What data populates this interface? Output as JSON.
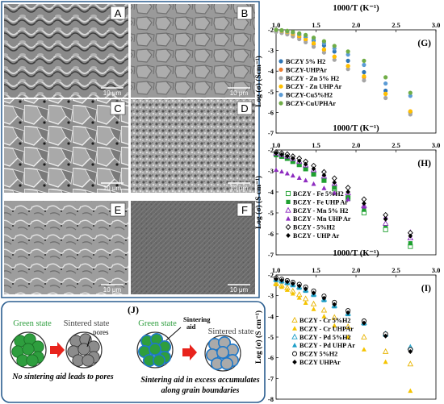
{
  "sem_panels": [
    {
      "label": "A",
      "scale": "10 μm",
      "style": "a"
    },
    {
      "label": "B",
      "scale": "10 μm",
      "style": "b"
    },
    {
      "label": "C",
      "scale": "10 μm",
      "style": "c"
    },
    {
      "label": "D",
      "scale": "10 μm",
      "style": "d"
    },
    {
      "label": "E",
      "scale": "10 μm",
      "style": "e"
    },
    {
      "label": "F",
      "scale": "10 μm",
      "style": "f"
    }
  ],
  "schematic": {
    "label": "(J)",
    "left": {
      "green": "Green state",
      "sintered": "Sintered state",
      "pores": "pores",
      "caption": "No sintering aid leads to pores"
    },
    "right": {
      "green": "Green state",
      "sintered": "Sintered state",
      "aid_line1": "Sintering",
      "aid_line2": "aid",
      "caption_line1": "Sintering aid in excess accumulates",
      "caption_line2": "along grain boundaries"
    },
    "colors": {
      "green": "#2e9e3e",
      "grey": "#8c8c8c",
      "aid": "#1f78c8",
      "arrow": "#e8231c",
      "frame": "#2a5d8f"
    }
  },
  "chart_data": [
    {
      "type": "scatter",
      "panel": "(G)",
      "xlabel": "1000/T (K⁻¹)",
      "ylabel": "Log (σ) (Scm⁻¹)",
      "xlim": [
        1.0,
        3.0
      ],
      "ylim": [
        -7,
        -2
      ],
      "xticks": [
        "1.0",
        "1.5",
        "2.0",
        "2.5",
        "3.0"
      ],
      "yticks": [
        "-2",
        "-3",
        "-4",
        "-5",
        "-6",
        "-7"
      ],
      "x": [
        1.0,
        1.07,
        1.14,
        1.21,
        1.29,
        1.37,
        1.47,
        1.6,
        1.73,
        1.9,
        2.1,
        2.37,
        2.68
      ],
      "series": [
        {
          "name": "BCZY 5% H2",
          "marker": "circle",
          "color": "#2e75b6",
          "values": [
            -2.02,
            -2.05,
            -2.1,
            -2.16,
            -2.25,
            -2.36,
            -2.52,
            -2.76,
            -3.05,
            -3.5,
            -4.05,
            -4.95,
            -6.0
          ]
        },
        {
          "name": "BCZY-UHPAr",
          "marker": "circle",
          "color": "#ed7d31",
          "values": [
            -2.05,
            -2.1,
            -2.16,
            -2.25,
            -2.36,
            -2.5,
            -2.7,
            -2.97,
            -3.3,
            -3.75,
            -4.3,
            -5.1,
            -5.95
          ]
        },
        {
          "name": "BCZY - Zn 5% H2",
          "marker": "circle",
          "color": "#a5a5a5",
          "values": [
            -2.1,
            -2.15,
            -2.22,
            -2.32,
            -2.45,
            -2.6,
            -2.82,
            -3.1,
            -3.45,
            -3.9,
            -4.45,
            -5.3,
            -6.1
          ]
        },
        {
          "name": "BCZY - Zn UHP Ar",
          "marker": "circle",
          "color": "#ffc000",
          "values": [
            -2.0,
            -2.05,
            -2.1,
            -2.18,
            -2.3,
            -2.45,
            -2.65,
            -2.95,
            -3.3,
            -3.75,
            -4.25,
            -5.1,
            -5.95
          ]
        },
        {
          "name": "BCZY-Cu5%H2",
          "marker": "circle",
          "color": "#5b9bd5",
          "values": [
            -2.0,
            -2.03,
            -2.07,
            -2.12,
            -2.2,
            -2.3,
            -2.45,
            -2.65,
            -2.9,
            -3.2,
            -3.7,
            -4.6,
            -5.2
          ]
        },
        {
          "name": "BCZY-CuUPHAr",
          "marker": "circle",
          "color": "#70ad47",
          "values": [
            -2.0,
            -2.02,
            -2.05,
            -2.1,
            -2.17,
            -2.25,
            -2.38,
            -2.55,
            -2.78,
            -3.05,
            -3.5,
            -4.3,
            -5.05
          ]
        }
      ]
    },
    {
      "type": "scatter",
      "panel": "(H)",
      "xlabel": "1000/T (K⁻¹)",
      "ylabel": "Log (σ) (S cm⁻¹)",
      "xlim": [
        1.0,
        3.0
      ],
      "ylim": [
        -7,
        -2
      ],
      "xticks": [
        "1.0",
        "1.5",
        "2.0",
        "2.5",
        "3.0"
      ],
      "yticks": [
        "-2",
        "-3",
        "-4",
        "-5",
        "-6",
        "-7"
      ],
      "x": [
        1.0,
        1.07,
        1.14,
        1.21,
        1.29,
        1.37,
        1.47,
        1.6,
        1.73,
        1.9,
        2.1,
        2.37,
        2.68
      ],
      "series": [
        {
          "name": "BCZY - Fe 5%H2",
          "marker": "square-open",
          "color": "#1fa030",
          "values": [
            -2.2,
            -2.3,
            -2.4,
            -2.55,
            -2.7,
            -2.9,
            -3.15,
            -3.45,
            -3.85,
            -4.3,
            -5.0,
            -5.8,
            -6.6
          ]
        },
        {
          "name": "BCZY - Fe UHP Ar",
          "marker": "square",
          "color": "#1fa030",
          "values": [
            -2.25,
            -2.32,
            -2.42,
            -2.55,
            -2.7,
            -2.9,
            -3.15,
            -3.45,
            -3.8,
            -4.25,
            -4.85,
            -5.6,
            -6.45
          ]
        },
        {
          "name": "BCZY - Mn 5% H2",
          "marker": "triangle-open",
          "color": "#8e2cc0",
          "values": [
            -2.15,
            -2.22,
            -2.3,
            -2.42,
            -2.55,
            -2.72,
            -2.95,
            -3.25,
            -3.6,
            -4.05,
            -4.65,
            -5.5,
            -6.2
          ]
        },
        {
          "name": "BCZY - Mn UHP Ar",
          "marker": "triangle",
          "color": "#8e2cc0",
          "values": [
            -2.95,
            -3.03,
            -3.12,
            -3.22,
            -3.33,
            -3.45,
            -3.62,
            -3.82,
            -4.05,
            -4.35,
            -4.7,
            -5.2,
            -5.9
          ]
        },
        {
          "name": "BCZY - 5%H2",
          "marker": "diamond-open",
          "color": "#000000",
          "values": [
            -2.1,
            -2.15,
            -2.2,
            -2.3,
            -2.4,
            -2.55,
            -2.75,
            -3.05,
            -3.35,
            -3.8,
            -4.35,
            -5.1,
            -5.95
          ]
        },
        {
          "name": "BCZY - UHP Ar",
          "marker": "diamond",
          "color": "#000000",
          "values": [
            -2.15,
            -2.22,
            -2.3,
            -2.4,
            -2.52,
            -2.68,
            -2.9,
            -3.2,
            -3.55,
            -4.0,
            -4.55,
            -5.3,
            -6.1
          ]
        }
      ]
    },
    {
      "type": "scatter",
      "panel": "(I)",
      "xlabel": "1000/T (K⁻¹)",
      "ylabel": "Log (σ) (S cm⁻¹)",
      "xlim": [
        1.0,
        3.0
      ],
      "ylim": [
        -8,
        -2
      ],
      "xticks": [
        "1.0",
        "1.5",
        "2.0",
        "2.5",
        "3.0"
      ],
      "yticks": [
        "-2",
        "-3",
        "-4",
        "-5",
        "-6",
        "-7",
        "-8"
      ],
      "x": [
        1.0,
        1.07,
        1.14,
        1.21,
        1.29,
        1.37,
        1.47,
        1.6,
        1.73,
        1.9,
        2.1,
        2.37,
        2.68
      ],
      "series": [
        {
          "name": "BCZY - Cr 5%H2",
          "marker": "triangle-open",
          "color": "#e8b400",
          "values": [
            -2.4,
            -2.5,
            -2.62,
            -2.78,
            -2.95,
            -3.15,
            -3.4,
            -3.7,
            -4.05,
            -4.5,
            -5.0,
            -5.7,
            -6.3
          ]
        },
        {
          "name": "BCZY - Cr UHPAr",
          "marker": "triangle",
          "color": "#f5c400",
          "values": [
            -2.45,
            -2.58,
            -2.72,
            -2.9,
            -3.1,
            -3.35,
            -3.65,
            -4.0,
            -4.45,
            -5.0,
            -5.6,
            -6.2,
            -7.6
          ]
        },
        {
          "name": "BCZY - Pd 5%H2",
          "marker": "triangle-open",
          "color": "#1e9fc8",
          "values": [
            -2.2,
            -2.27,
            -2.35,
            -2.45,
            -2.57,
            -2.72,
            -2.92,
            -3.17,
            -3.47,
            -3.85,
            -4.3,
            -4.85,
            -5.5
          ]
        },
        {
          "name": "BCZY - Pd UHP Ar",
          "marker": "triangle",
          "color": "#1e9fc8",
          "values": [
            -2.25,
            -2.32,
            -2.4,
            -2.5,
            -2.62,
            -2.77,
            -2.97,
            -3.22,
            -3.52,
            -3.9,
            -4.35,
            -4.9,
            -5.55
          ]
        },
        {
          "name": "BCZY 5%H2",
          "marker": "circle-open",
          "color": "#000000",
          "values": [
            -2.15,
            -2.2,
            -2.27,
            -2.35,
            -2.45,
            -2.58,
            -2.77,
            -3.02,
            -3.32,
            -3.72,
            -4.22,
            -4.85,
            -5.6
          ]
        },
        {
          "name": "BCZY UHPAr",
          "marker": "diamond",
          "color": "#000000",
          "values": [
            -2.2,
            -2.26,
            -2.33,
            -2.42,
            -2.53,
            -2.67,
            -2.87,
            -3.12,
            -3.42,
            -3.82,
            -4.32,
            -4.95,
            -5.7
          ]
        }
      ]
    }
  ]
}
